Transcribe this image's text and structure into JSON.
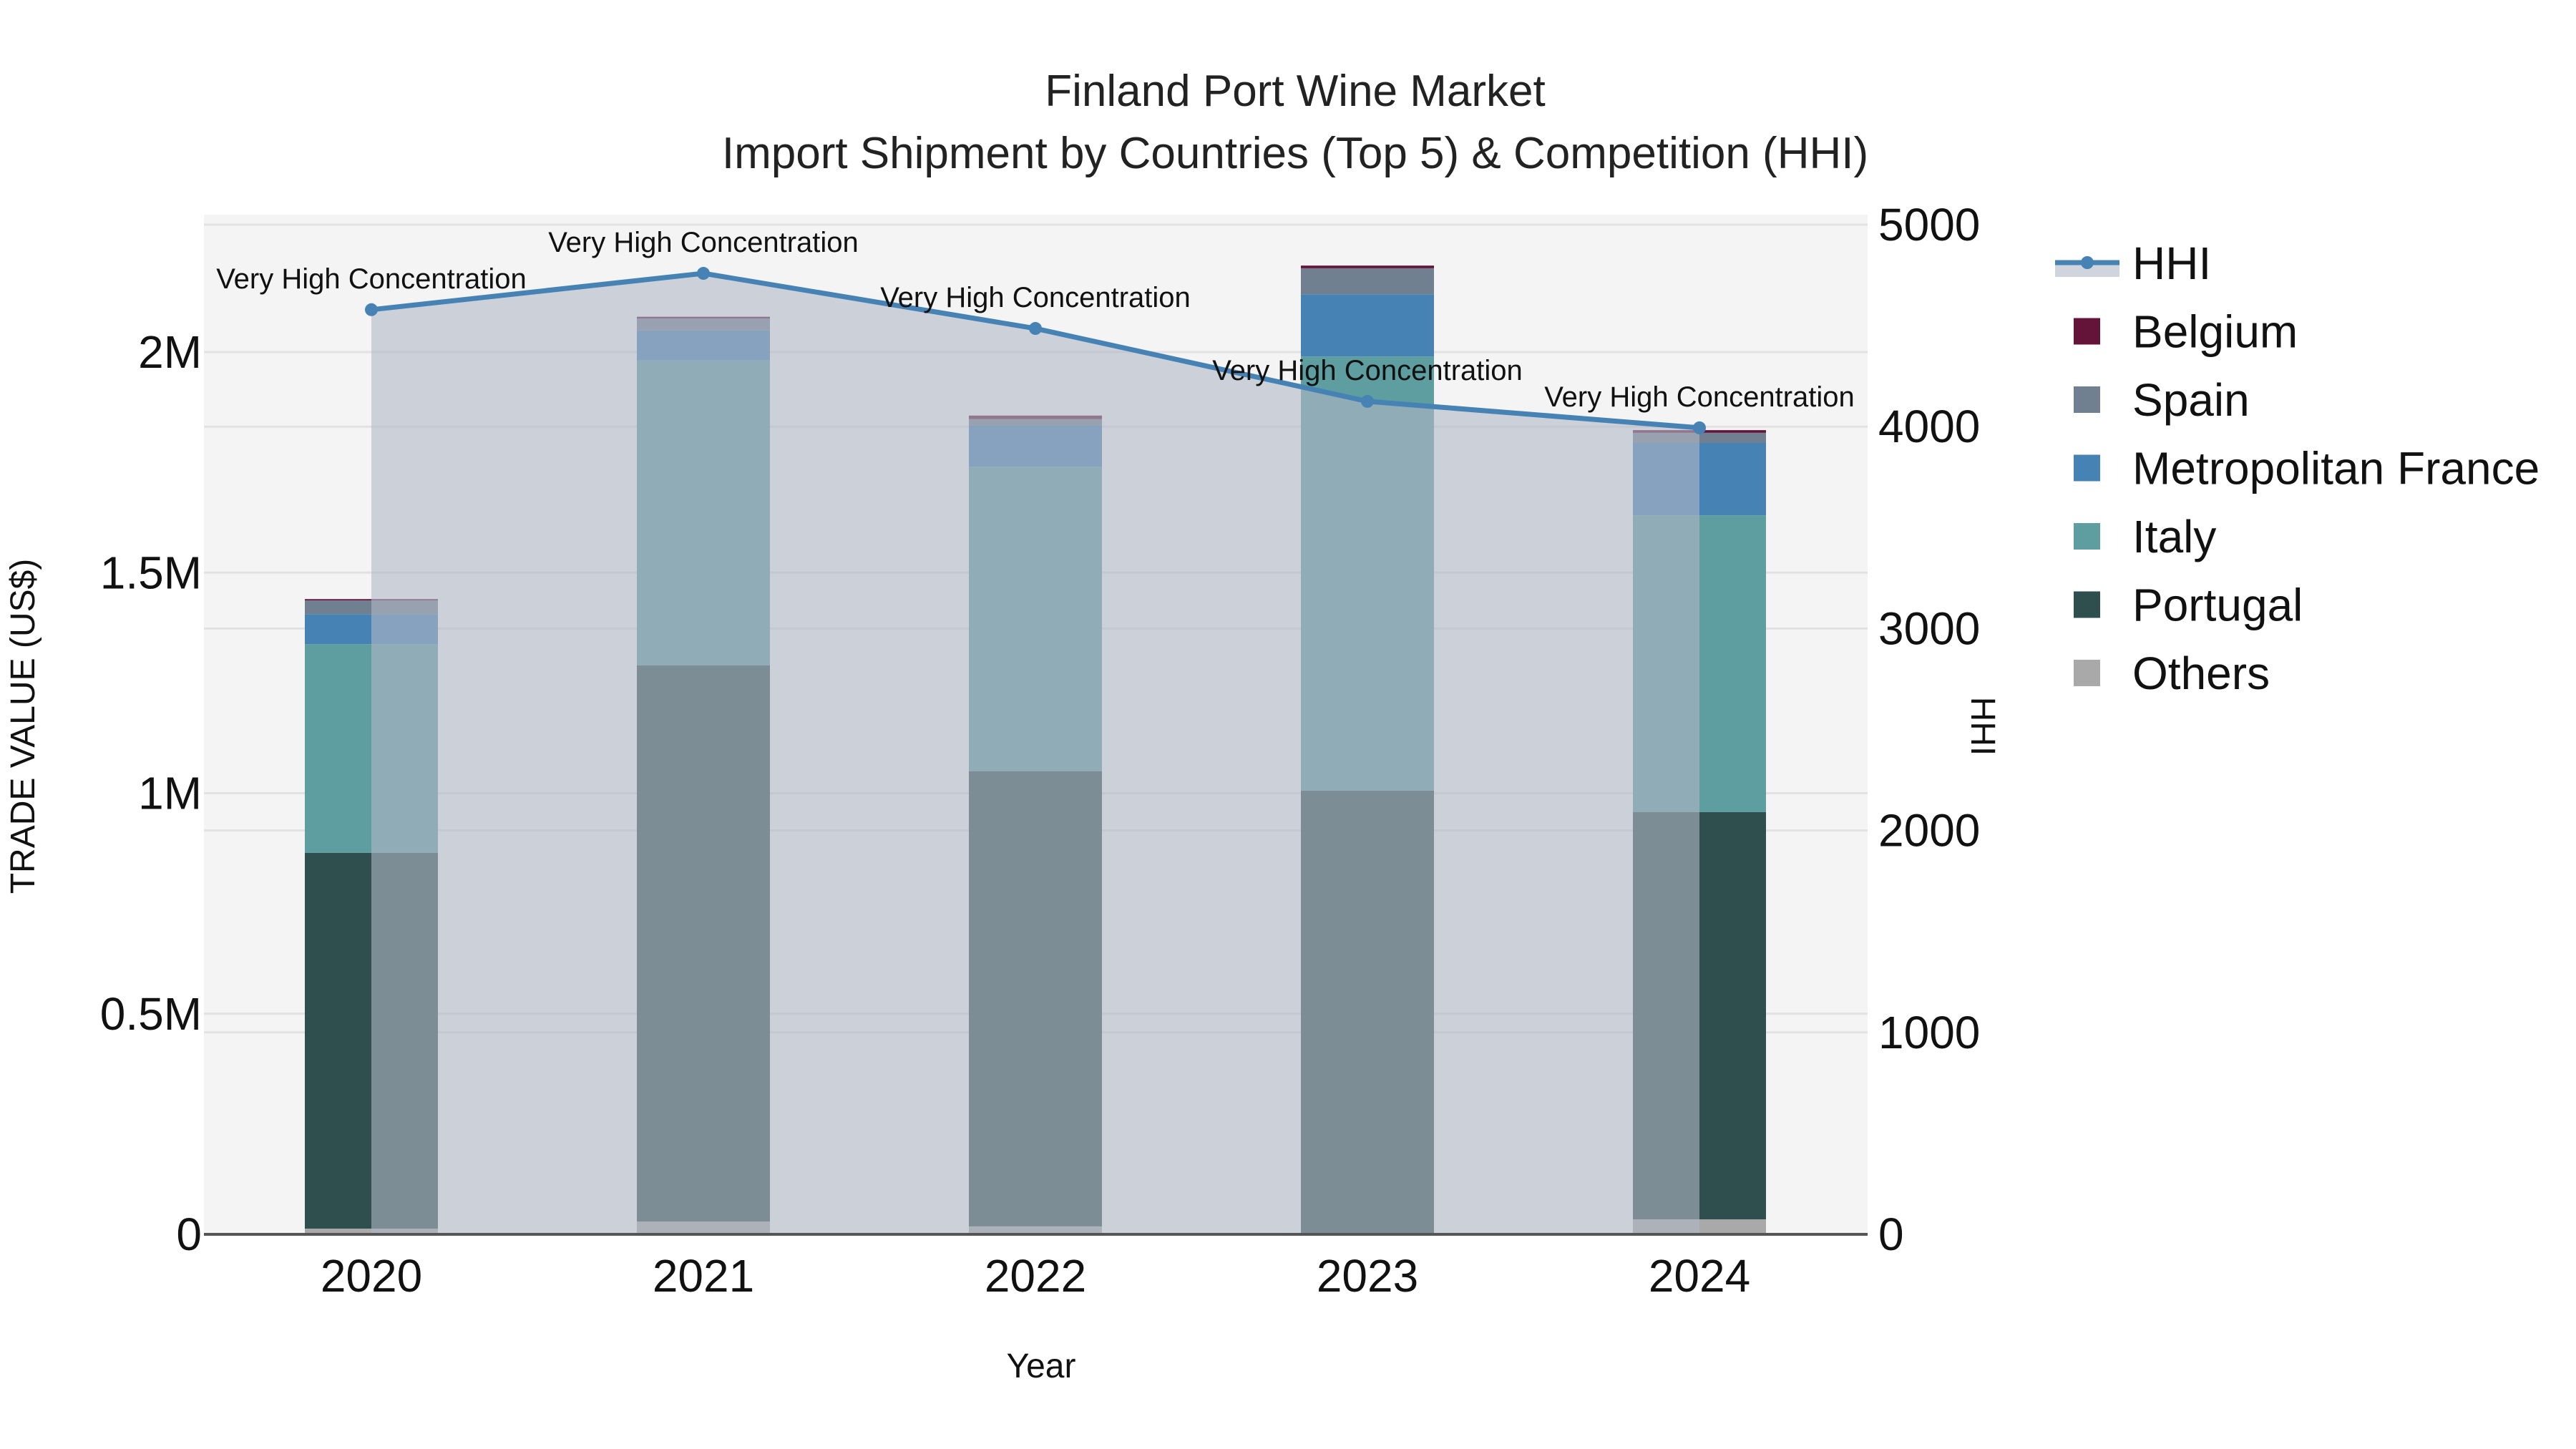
{
  "chart_data": {
    "type": "bar",
    "subtype": "stacked bar + line (secondary axis) with filled area",
    "title": "Finland Port Wine Market",
    "subtitle": "Import Shipment by Countries (Top 5) & Competition (HHI)",
    "xlabel": "Year",
    "ylabel": "TRADE VALUE (US$)",
    "y2label": "HHI",
    "categories": [
      "2020",
      "2021",
      "2022",
      "2023",
      "2024"
    ],
    "ylim": [
      0,
      2300000
    ],
    "y_ticks": [
      0,
      500000,
      1000000,
      1500000,
      2000000
    ],
    "y_tick_labels": [
      "0",
      "0.5M",
      "1M",
      "1.5M",
      "2M"
    ],
    "y2lim": [
      0,
      5000
    ],
    "y2_ticks": [
      0,
      1000,
      2000,
      3000,
      4000,
      5000
    ],
    "y2_tick_labels": [
      "0",
      "1000",
      "2000",
      "3000",
      "4000",
      "5000"
    ],
    "grid": true,
    "legend_position": "right",
    "series": [
      {
        "name": "Others",
        "color": "#a9a9a9",
        "values": [
          13000,
          29000,
          18000,
          3000,
          34000
        ]
      },
      {
        "name": "Portugal",
        "color": "#2f4f4f",
        "values": [
          852000,
          1261000,
          1032000,
          1003000,
          923000
        ]
      },
      {
        "name": "Italy",
        "color": "#5f9ea0",
        "values": [
          473000,
          691000,
          690000,
          984000,
          673000
        ]
      },
      {
        "name": "Metropolitan France",
        "color": "#4682b4",
        "values": [
          68000,
          68000,
          93000,
          141000,
          164000
        ]
      },
      {
        "name": "Spain",
        "color": "#708090",
        "values": [
          31000,
          27000,
          15000,
          59000,
          23000
        ]
      },
      {
        "name": "Belgium",
        "color": "#641439",
        "values": [
          3000,
          4000,
          8000,
          6000,
          6000
        ]
      }
    ],
    "line_series": {
      "name": "HHI",
      "axis": "y2",
      "color": "#4682b4",
      "fill": "tozeroy",
      "fill_color": "rgba(176,184,198,0.6)",
      "values": [
        4579,
        4759,
        4486,
        4125,
        3994
      ],
      "annotations": [
        "Very High Concentration",
        "Very High Concentration",
        "Very High Concentration",
        "Very High Concentration",
        "Very High Concentration"
      ]
    }
  },
  "legend": {
    "items": [
      {
        "label": "HHI",
        "kind": "line",
        "color": "#4682b4"
      },
      {
        "label": "Belgium",
        "kind": "box",
        "color": "#641439"
      },
      {
        "label": "Spain",
        "kind": "box",
        "color": "#708090"
      },
      {
        "label": "Metropolitan France",
        "kind": "box",
        "color": "#4682b4"
      },
      {
        "label": "Italy",
        "kind": "box",
        "color": "#5f9ea0"
      },
      {
        "label": "Portugal",
        "kind": "box",
        "color": "#2f4f4f"
      },
      {
        "label": "Others",
        "kind": "box",
        "color": "#a9a9a9"
      }
    ]
  },
  "colors": {
    "plot_bg": "#f4f4f4",
    "grid": "#e2e2e2",
    "zero_line": "#555555"
  }
}
